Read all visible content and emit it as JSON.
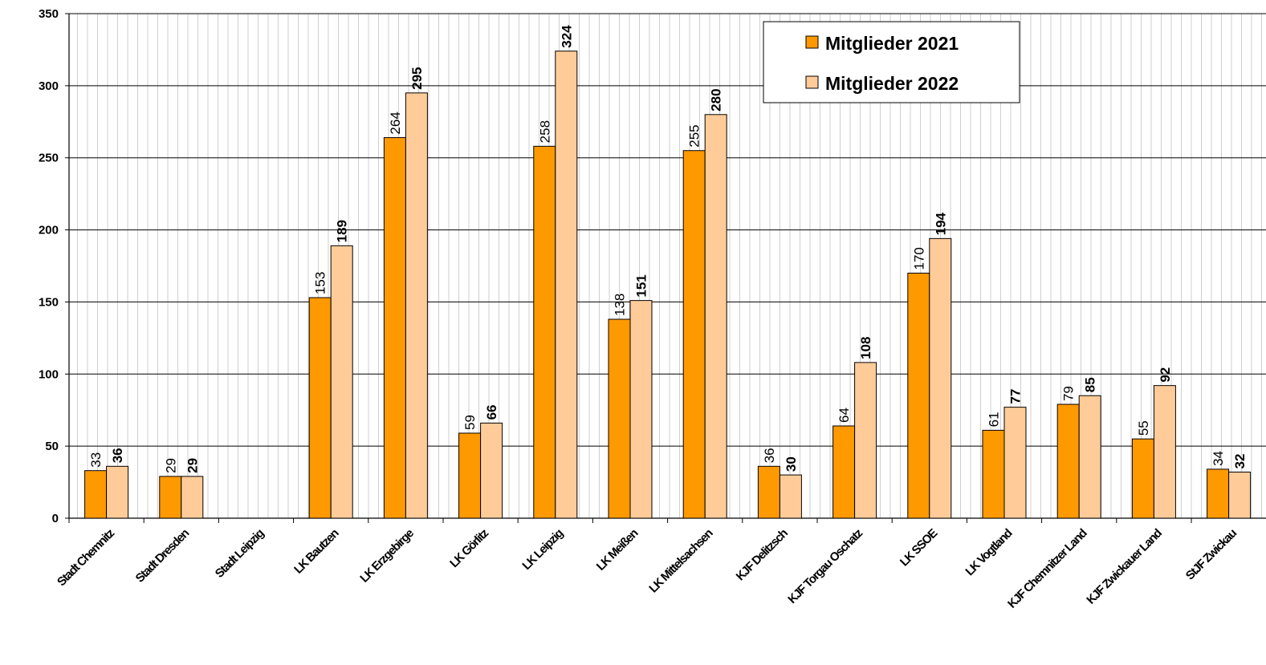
{
  "chart_data": {
    "type": "bar",
    "categories": [
      "Stadt Chemnitz",
      "Stadt Dresden",
      "Stadt Leipzig",
      "LK Bautzen",
      "LK Erzgebirge",
      "LK Görlitz",
      "LK Leipzig",
      "LK Meißen",
      "LK Mittelsachsen",
      "KJF Delitzsch",
      "KJF Torgau Oschatz",
      "LK SSOE",
      "LK Vogtland",
      "KJF Chemnitzer Land",
      "KJF Zwickauer Land",
      "StJF Zwickau"
    ],
    "series": [
      {
        "name": "Mitglieder 2021",
        "color": "#FF9900",
        "values": [
          33,
          29,
          null,
          153,
          264,
          59,
          258,
          138,
          255,
          36,
          64,
          170,
          61,
          79,
          55,
          34
        ]
      },
      {
        "name": "Mitglieder 2022",
        "color": "#FFCC99",
        "values": [
          36,
          29,
          null,
          189,
          295,
          66,
          324,
          151,
          280,
          30,
          108,
          194,
          77,
          85,
          92,
          32
        ]
      }
    ],
    "yticks": [
      "0",
      "50",
      "100",
      "150",
      "200",
      "250",
      "300",
      "350"
    ],
    "ylim": [
      0,
      350
    ],
    "grid": true,
    "legend": "top-center"
  }
}
